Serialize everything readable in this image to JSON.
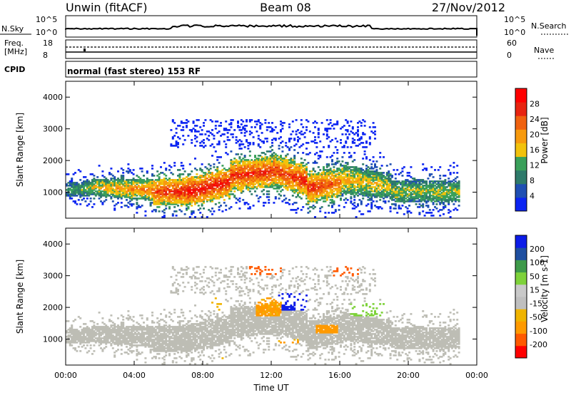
{
  "header": {
    "station": "Unwin (fitACF)",
    "beam": "Beam 08",
    "date": "27/Nov/2012"
  },
  "nsky_panel": {
    "label": "N.Sky",
    "right_label": "N.Search",
    "left_ticks": [
      "10^5",
      "10^0"
    ],
    "right_ticks": [
      "10^5",
      "10^0"
    ]
  },
  "freq_panel": {
    "label_line1": "Freq.",
    "label_line2": "[MHz]",
    "right_label": "Nave",
    "left_ticks": [
      "18",
      "8"
    ],
    "right_ticks": [
      "60",
      "0"
    ]
  },
  "cpid": {
    "label": "CPID",
    "value": "normal (fast stereo) 153 RF"
  },
  "colors": {
    "power_scale": [
      "#0b24f2",
      "#1f4fb3",
      "#2e7a6a",
      "#3aa05a",
      "#f2c20c",
      "#f79a0e",
      "#f0620f",
      "#e82410",
      "#ff0000"
    ],
    "velocity_scale": [
      "#ff0000",
      "#ff5a00",
      "#ff9a00",
      "#f0b400",
      "#bfbfbf",
      "#c9c9c9",
      "#7ed23a",
      "#3e9a4a",
      "#1e4fa0",
      "#0c1ce8"
    ],
    "ground_scatter": "#bdbdb5"
  },
  "chart_data": [
    {
      "type": "heatmap",
      "name": "power",
      "xlabel": "",
      "ylabel": "Slant Range [km]",
      "x_ticks": [
        "00:00",
        "04:00",
        "08:00",
        "12:00",
        "16:00",
        "20:00",
        "00:00"
      ],
      "y_ticks": [
        1000,
        2000,
        3000,
        4000
      ],
      "xlim_hours": [
        0,
        24
      ],
      "ylim_km": [
        180,
        4500
      ],
      "colorbar": {
        "label": "Power [dB]",
        "ticks": [
          4,
          8,
          12,
          16,
          20,
          24,
          28
        ],
        "range": [
          0,
          30
        ]
      },
      "bands": [
        {
          "t_start": 0.0,
          "t_end": 1.5,
          "range_center": 1050,
          "width": 220,
          "peak_db": 10
        },
        {
          "t_start": 1.5,
          "t_end": 5.0,
          "range_center": 1150,
          "width": 260,
          "peak_db": 16
        },
        {
          "t_start": 5.0,
          "t_end": 7.0,
          "range_center": 1000,
          "width": 400,
          "peak_db": 24
        },
        {
          "t_start": 7.0,
          "t_end": 9.5,
          "range_center": 1000,
          "width": 420,
          "peak_db": 28
        },
        {
          "t_start": 9.5,
          "t_end": 12.0,
          "range_center": 1500,
          "width": 450,
          "peak_db": 26
        },
        {
          "t_start": 12.0,
          "t_end": 14.0,
          "range_center": 1700,
          "width": 500,
          "peak_db": 24
        },
        {
          "t_start": 14.0,
          "t_end": 16.0,
          "range_center": 1100,
          "width": 450,
          "peak_db": 26
        },
        {
          "t_start": 16.0,
          "t_end": 19.0,
          "range_center": 1400,
          "width": 450,
          "peak_db": 18
        },
        {
          "t_start": 19.0,
          "t_end": 23.0,
          "range_center": 1000,
          "width": 350,
          "peak_db": 14
        }
      ]
    },
    {
      "type": "heatmap",
      "name": "velocity",
      "xlabel": "Time UT",
      "ylabel": "Slant Range [km]",
      "x_ticks": [
        "00:00",
        "04:00",
        "08:00",
        "12:00",
        "16:00",
        "20:00",
        "00:00"
      ],
      "y_ticks": [
        1000,
        2000,
        3000,
        4000
      ],
      "xlim_hours": [
        0,
        24
      ],
      "ylim_km": [
        180,
        4500
      ],
      "colorbar": {
        "label": "Velocity [m s-1]",
        "ticks": [
          "200",
          "100",
          "50",
          "15",
          "-15",
          "-50",
          "-100",
          "-200"
        ],
        "range": [
          -250,
          250
        ]
      },
      "patches": [
        {
          "t_start": 12.3,
          "t_end": 14.0,
          "range_start": 1900,
          "range_end": 2450,
          "velocity": 220
        },
        {
          "t_start": 11.0,
          "t_end": 12.5,
          "range_start": 1700,
          "range_end": 2300,
          "velocity": -60
        },
        {
          "t_start": 8.0,
          "t_end": 9.0,
          "range_start": 1900,
          "range_end": 2300,
          "velocity": -40
        },
        {
          "t_start": 14.5,
          "t_end": 15.8,
          "range_start": 1150,
          "range_end": 1450,
          "velocity": -70
        },
        {
          "t_start": 12.0,
          "t_end": 13.5,
          "range_start": 850,
          "range_end": 1000,
          "velocity": -60
        },
        {
          "t_start": 16.5,
          "t_end": 18.5,
          "range_start": 1700,
          "range_end": 2100,
          "velocity": 30
        },
        {
          "t_start": 10.5,
          "t_end": 12.5,
          "range_start": 3000,
          "range_end": 3300,
          "velocity": -150
        },
        {
          "t_start": 15.5,
          "t_end": 17.0,
          "range_start": 2950,
          "range_end": 3300,
          "velocity": -180
        },
        {
          "t_start": 9.0,
          "t_end": 9.5,
          "range_start": 300,
          "range_end": 400,
          "velocity": -60
        }
      ]
    }
  ]
}
